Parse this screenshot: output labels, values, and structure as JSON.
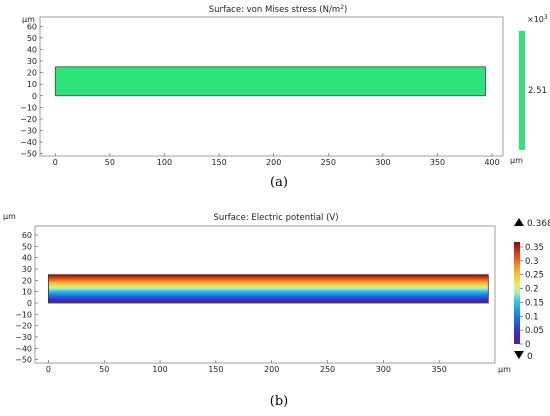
{
  "panel_a": {
    "caption": "(a)",
    "title_main": "Surface: von Mises stress (N/m",
    "title_sup": "2",
    "title_end": ")",
    "axis_unit": "µm",
    "colorbar": {
      "multiplier_base": "×10",
      "multiplier_exp": "3",
      "value_label": "2.51",
      "color": "#2ee37a"
    }
  },
  "panel_b": {
    "caption": "(b)",
    "title": "Surface: Electric potential (V)",
    "axis_unit": "µm",
    "colorbar": {
      "max_label": "0.368",
      "min_label": "0",
      "ticks": [
        "0.35",
        "0.3",
        "0.25",
        "0.2",
        "0.15",
        "0.1",
        "0.05",
        "0"
      ]
    }
  },
  "chart_data": [
    {
      "type": "heatmap",
      "title": "Surface: von Mises stress (N/m2)",
      "xlabel": "µm",
      "ylabel": "µm",
      "x_ticks": [
        0,
        50,
        100,
        150,
        200,
        250,
        300,
        350,
        400
      ],
      "y_ticks": [
        -50,
        -40,
        -30,
        -20,
        -10,
        0,
        10,
        20,
        30,
        40,
        50,
        60
      ],
      "xlim": [
        -14,
        410
      ],
      "ylim": [
        -52,
        68
      ],
      "domain": {
        "x": [
          0,
          394
        ],
        "y": [
          0,
          25
        ]
      },
      "field": "uniform",
      "value": 2510,
      "colorbar_label": "2.51",
      "colorbar_multiplier": "×10^3",
      "grid": false
    },
    {
      "type": "heatmap",
      "title": "Surface: Electric potential (V)",
      "xlabel": "µm",
      "ylabel": "µm",
      "x_ticks": [
        0,
        50,
        100,
        150,
        200,
        250,
        300,
        350
      ],
      "y_ticks": [
        -50,
        -40,
        -30,
        -20,
        -10,
        0,
        10,
        20,
        30,
        40,
        50,
        60
      ],
      "xlim": [
        -12,
        400
      ],
      "ylim": [
        -53,
        68
      ],
      "domain": {
        "x": [
          0,
          394
        ],
        "y": [
          0,
          25
        ]
      },
      "field": "linear in y",
      "range": [
        0,
        0.368
      ],
      "colorbar_ticks": [
        0,
        0.05,
        0.1,
        0.15,
        0.2,
        0.25,
        0.3,
        0.35
      ],
      "colormap": "rainbow",
      "grid": false
    }
  ]
}
